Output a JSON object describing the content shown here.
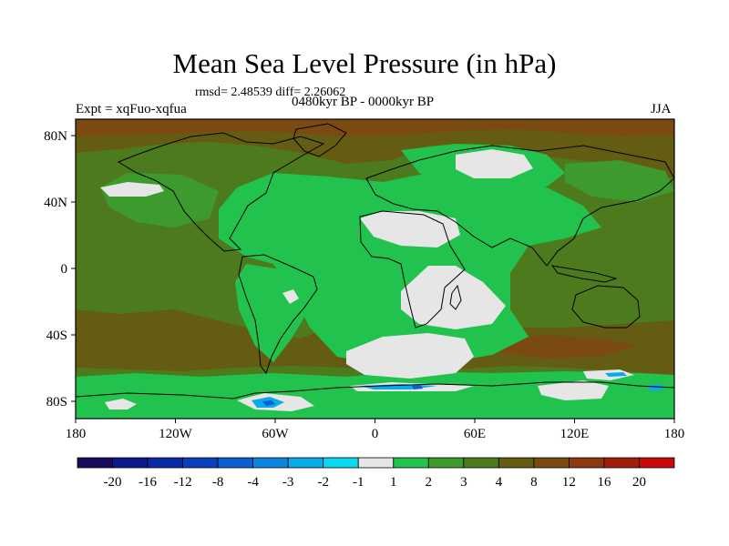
{
  "title": "Mean Sea Level Pressure (in hPa)",
  "stats_line": "rmsd= 2.48539 diff= 2.26062",
  "period_label": "0480kyr BP - 0000kyr BP",
  "experiment_label": "Expt = xqFuo-xqfua",
  "season_label": "JJA",
  "lat_labels": [
    "80N",
    "40N",
    "0",
    "40S",
    "80S"
  ],
  "lon_labels": [
    "180",
    "120W",
    "60W",
    "0",
    "60E",
    "120E",
    "180"
  ],
  "colorbar": {
    "labels": [
      "-20",
      "-16",
      "-12",
      "-8",
      "-4",
      "-3",
      "-2",
      "-1",
      "1",
      "2",
      "3",
      "4",
      "8",
      "12",
      "16",
      "20"
    ],
    "colors": [
      "#1a0a5c",
      "#0a1a8c",
      "#0a2aa6",
      "#0a3fbf",
      "#0a60d0",
      "#0a86e0",
      "#0aaae8",
      "#0ad8f0",
      "#e6e6e6",
      "#22c24e",
      "#3d9a2d",
      "#4e7a1e",
      "#655c14",
      "#7a4a12",
      "#8c3a10",
      "#a31e0a",
      "#c80a0a"
    ]
  },
  "field_colors": {
    "background": "#4e7a1e",
    "mid_green": "#3d9a2d",
    "bright_green": "#22c24e",
    "light_gray": "#e6e6e6",
    "brown": "#655c14",
    "dark_brown": "#7a4a12",
    "cyan": "#0aaae8",
    "blue": "#0a60d0",
    "coast": "#000000"
  }
}
